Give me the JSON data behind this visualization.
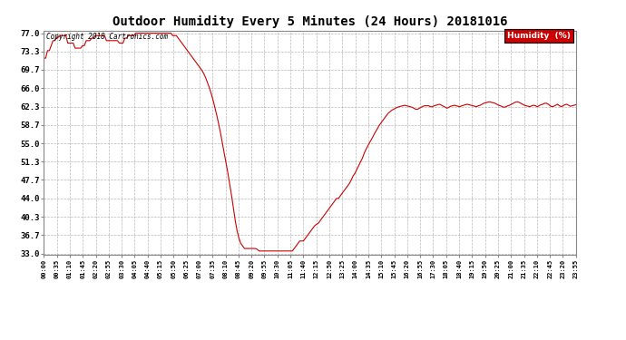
{
  "title": "Outdoor Humidity Every 5 Minutes (24 Hours) 20181016",
  "copyright_text": "Copyright 2018 Cartronics.com",
  "legend_label": "Humidity  (%)",
  "line_color": "#cc0000",
  "bg_color": "#ffffff",
  "plot_bg_color": "#ffffff",
  "grid_color": "#b0b0b0",
  "yticks": [
    33.0,
    36.7,
    40.3,
    44.0,
    47.7,
    51.3,
    55.0,
    58.7,
    62.3,
    66.0,
    69.7,
    73.3,
    77.0
  ],
  "ymin": 33.0,
  "ymax": 77.0,
  "humidity_data": [
    72.0,
    72.0,
    73.5,
    73.5,
    74.5,
    75.5,
    75.5,
    76.2,
    76.2,
    76.5,
    76.5,
    76.5,
    76.5,
    75.0,
    75.0,
    75.0,
    75.0,
    74.0,
    74.0,
    74.0,
    74.0,
    74.5,
    74.5,
    75.5,
    75.5,
    75.5,
    76.0,
    76.0,
    76.5,
    76.5,
    76.5,
    76.5,
    76.5,
    76.5,
    75.5,
    75.5,
    75.5,
    75.5,
    75.5,
    75.5,
    75.5,
    75.0,
    75.0,
    75.0,
    76.0,
    76.0,
    76.5,
    76.5,
    76.5,
    76.5,
    77.0,
    77.0,
    77.0,
    77.0,
    77.0,
    77.0,
    77.0,
    77.0,
    77.0,
    77.0,
    77.0,
    77.0,
    77.0,
    77.0,
    77.0,
    77.0,
    77.0,
    77.0,
    77.0,
    77.0,
    76.5,
    76.5,
    76.5,
    76.0,
    75.5,
    75.0,
    74.5,
    74.0,
    73.5,
    73.0,
    72.5,
    72.0,
    71.5,
    71.0,
    70.5,
    70.0,
    69.5,
    68.8,
    68.0,
    67.0,
    66.0,
    64.8,
    63.5,
    62.0,
    60.5,
    58.8,
    57.0,
    55.0,
    53.0,
    51.0,
    49.0,
    46.8,
    44.5,
    42.0,
    39.5,
    37.5,
    36.0,
    35.0,
    34.5,
    34.0,
    34.0,
    34.0,
    34.0,
    34.0,
    34.0,
    34.0,
    33.8,
    33.5,
    33.5,
    33.5,
    33.5,
    33.5,
    33.5,
    33.5,
    33.5,
    33.5,
    33.5,
    33.5,
    33.5,
    33.5,
    33.5,
    33.5,
    33.5,
    33.5,
    33.5,
    33.5,
    34.0,
    34.5,
    35.0,
    35.5,
    35.5,
    35.5,
    36.0,
    36.5,
    37.0,
    37.5,
    38.0,
    38.5,
    38.8,
    39.0,
    39.5,
    40.0,
    40.5,
    41.0,
    41.5,
    42.0,
    42.5,
    43.0,
    43.5,
    44.0,
    44.0,
    44.5,
    45.0,
    45.5,
    46.0,
    46.5,
    47.0,
    47.7,
    48.5,
    49.0,
    49.8,
    50.5,
    51.3,
    52.0,
    53.0,
    53.8,
    54.5,
    55.2,
    55.8,
    56.5,
    57.2,
    57.8,
    58.5,
    59.0,
    59.5,
    60.0,
    60.5,
    61.0,
    61.3,
    61.6,
    61.8,
    62.0,
    62.2,
    62.3,
    62.4,
    62.5,
    62.6,
    62.5,
    62.4,
    62.3,
    62.2,
    62.0,
    61.8,
    61.8,
    62.0,
    62.2,
    62.4,
    62.5,
    62.5,
    62.5,
    62.3,
    62.3,
    62.5,
    62.6,
    62.7,
    62.8,
    62.6,
    62.4,
    62.2,
    62.0,
    62.2,
    62.4,
    62.5,
    62.6,
    62.5,
    62.4,
    62.3,
    62.5,
    62.6,
    62.7,
    62.8,
    62.7,
    62.6,
    62.5,
    62.4,
    62.3,
    62.5,
    62.6,
    62.8,
    63.0,
    63.1,
    63.2,
    63.3,
    63.2,
    63.1,
    63.0,
    62.8,
    62.6,
    62.5,
    62.3,
    62.2,
    62.3,
    62.5,
    62.6,
    62.8,
    63.0,
    63.2,
    63.3,
    63.2,
    63.0,
    62.8,
    62.6,
    62.5,
    62.4,
    62.3,
    62.5,
    62.6,
    62.5,
    62.3,
    62.5,
    62.7,
    62.8,
    63.0,
    63.0,
    62.8,
    62.5,
    62.3,
    62.4,
    62.6,
    62.8,
    62.5,
    62.3,
    62.5,
    62.7,
    62.8,
    62.6,
    62.4,
    62.5,
    62.6,
    62.7
  ],
  "xtick_labels": [
    "00:00",
    "00:35",
    "01:10",
    "01:45",
    "02:20",
    "02:55",
    "03:30",
    "04:05",
    "04:40",
    "05:15",
    "05:50",
    "06:25",
    "07:00",
    "07:35",
    "08:10",
    "08:45",
    "09:20",
    "09:55",
    "10:30",
    "11:05",
    "11:40",
    "12:15",
    "12:50",
    "13:25",
    "14:00",
    "14:35",
    "15:10",
    "15:45",
    "16:20",
    "16:55",
    "17:30",
    "18:05",
    "18:40",
    "19:15",
    "19:50",
    "20:25",
    "21:00",
    "21:35",
    "22:10",
    "22:45",
    "23:20",
    "23:55"
  ],
  "title_fontsize": 10,
  "legend_fontsize": 7,
  "ylabel_fontsize": 7,
  "xlabel_fontsize": 5
}
